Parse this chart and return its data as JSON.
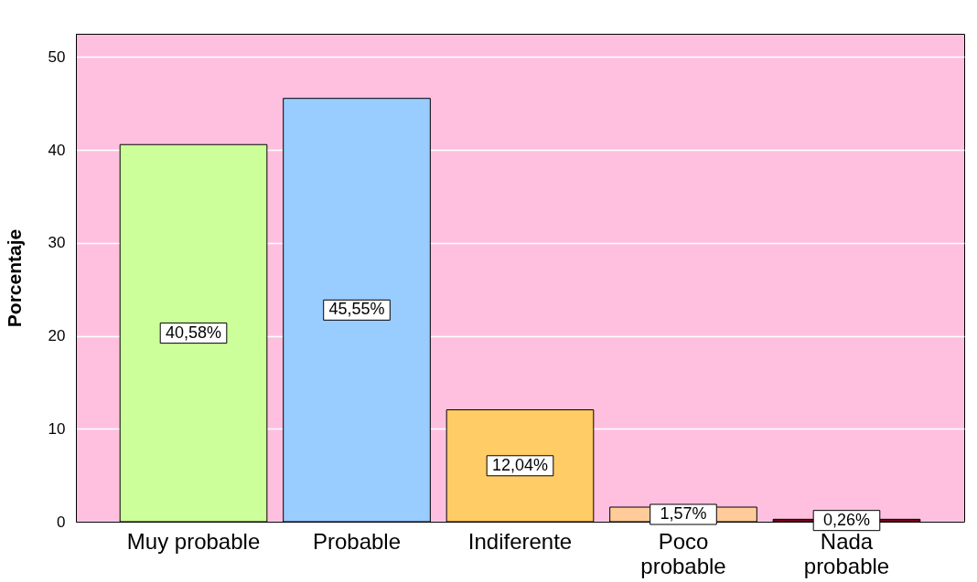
{
  "chart_data": {
    "type": "bar",
    "ylabel": "Porcentaje",
    "categories": [
      "Muy probable",
      "Probable",
      "Indiferente",
      "Poco probable",
      "Nada probable"
    ],
    "values": [
      40.58,
      45.55,
      12.04,
      1.57,
      0.26
    ],
    "colors": [
      "#ccff99",
      "#99ccff",
      "#ffcc66",
      "#ffcc99",
      "#800020"
    ],
    "value_labels": [
      "40,58%",
      "45,55%",
      "12,04%",
      "1,57%",
      "0,26%"
    ],
    "ylim": [
      0,
      52.5
    ],
    "yticks": [
      0,
      10,
      20,
      30,
      40,
      50
    ],
    "grid": "y"
  }
}
